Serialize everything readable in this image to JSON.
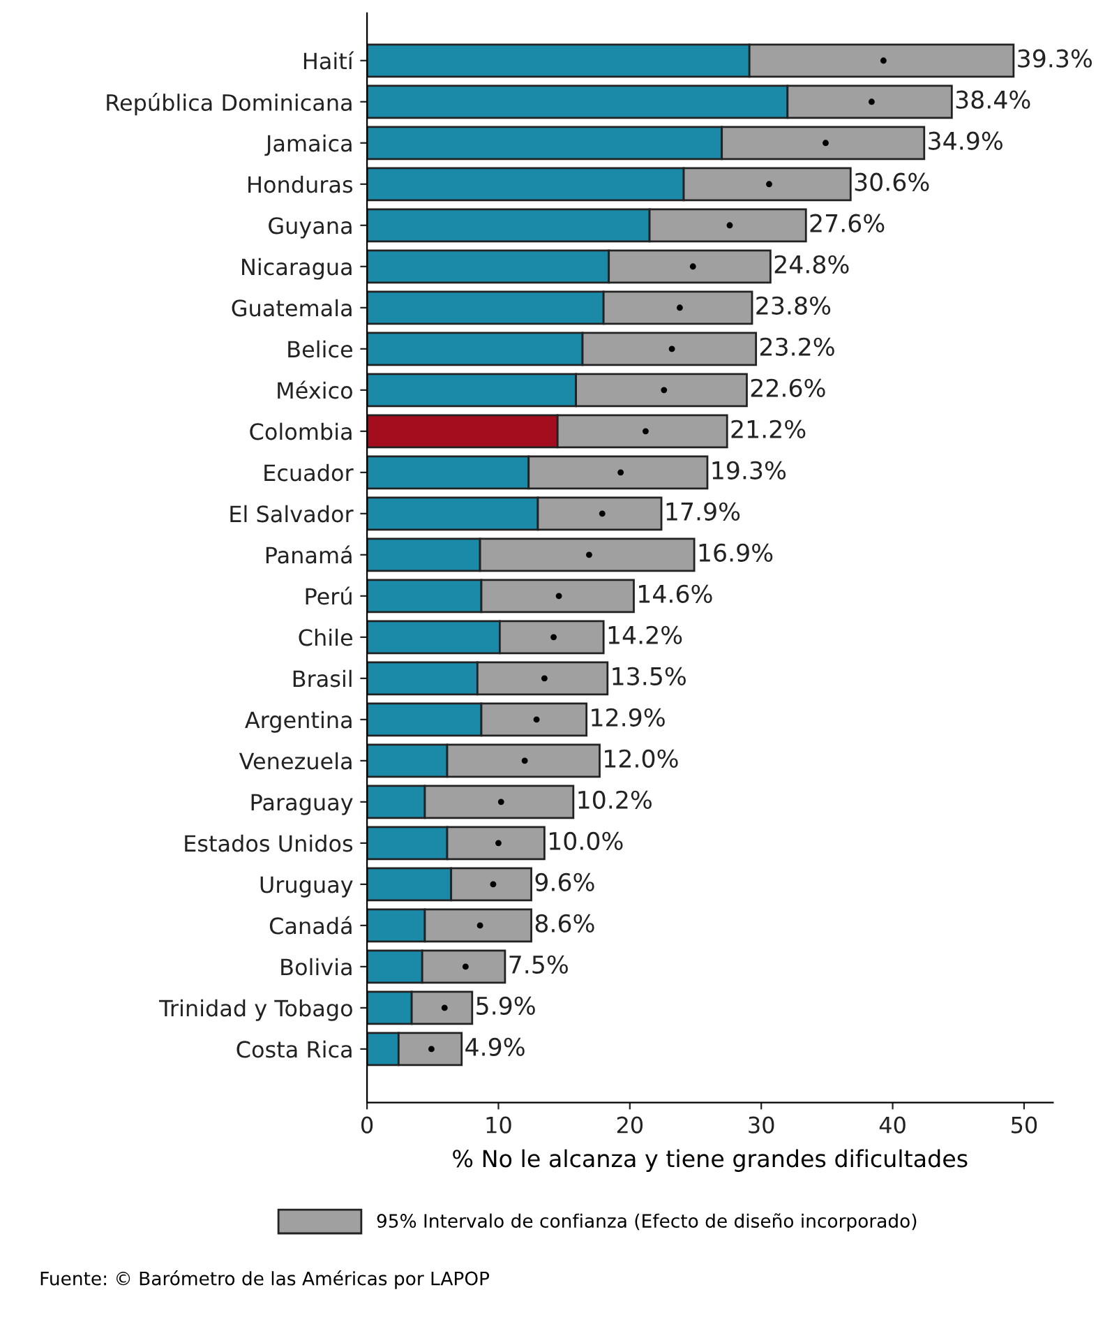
{
  "chart_data": {
    "type": "bar",
    "orientation": "horizontal",
    "stacked": true,
    "categories": [
      "Haití",
      "República Dominicana",
      "Jamaica",
      "Honduras",
      "Guyana",
      "Nicaragua",
      "Guatemala",
      "Belice",
      "México",
      "Colombia",
      "Ecuador",
      "El Salvador",
      "Panamá",
      "Perú",
      "Chile",
      "Brasil",
      "Argentina",
      "Venezuela",
      "Paraguay",
      "Estados Unidos",
      "Uruguay",
      "Canadá",
      "Bolivia",
      "Trinidad y Tobago",
      "Costa Rica"
    ],
    "series": [
      {
        "colors": [
          "#1a8aa8",
          "#1a8aa8",
          "#1a8aa8",
          "#1a8aa8",
          "#1a8aa8",
          "#1a8aa8",
          "#1a8aa8",
          "#1a8aa8",
          "#1a8aa8",
          "#a30d1e",
          "#1a8aa8",
          "#1a8aa8",
          "#1a8aa8",
          "#1a8aa8",
          "#1a8aa8",
          "#1a8aa8",
          "#1a8aa8",
          "#1a8aa8",
          "#1a8aa8",
          "#1a8aa8",
          "#1a8aa8",
          "#1a8aa8",
          "#1a8aa8",
          "#1a8aa8",
          "#1a8aa8"
        ],
        "values": [
          29.1,
          32.0,
          27.0,
          24.1,
          21.5,
          18.4,
          18.0,
          16.4,
          15.9,
          14.5,
          12.3,
          13.0,
          8.6,
          8.7,
          10.1,
          8.4,
          8.7,
          6.1,
          4.4,
          6.1,
          6.4,
          4.4,
          4.2,
          3.4,
          2.4
        ]
      },
      {
        "name": "95% Intervalo de confianza (Efecto de diseño incorporado)",
        "color": "#a0a0a0",
        "values": [
          20.1,
          12.5,
          15.4,
          12.7,
          11.9,
          12.3,
          11.3,
          13.2,
          13.0,
          12.9,
          13.6,
          9.4,
          16.3,
          11.6,
          7.9,
          9.9,
          8.0,
          11.6,
          11.3,
          7.4,
          6.1,
          8.1,
          6.3,
          4.6,
          4.8
        ]
      },
      {
        "type": "scatter",
        "color": "#000000",
        "marker": "circle",
        "values": [
          39.3,
          38.4,
          34.9,
          30.6,
          27.6,
          24.8,
          23.8,
          23.2,
          22.6,
          21.2,
          19.3,
          17.9,
          16.9,
          14.6,
          14.2,
          13.5,
          12.9,
          12.0,
          10.2,
          10.0,
          9.6,
          8.6,
          7.5,
          5.9,
          4.9
        ]
      }
    ],
    "xlim": [
      0,
      52.2
    ],
    "xticks": [
      0,
      10,
      20,
      30,
      40,
      50
    ],
    "xlabel": "% No le alcanza y tiene grandes dificultades",
    "legend": "bottom",
    "grid": false,
    "annotations": [
      {
        "text": "39.3%",
        "x": 49.2,
        "y": "Haití"
      },
      {
        "text": "38.4%",
        "x": 44.5,
        "y": "República Dominicana"
      },
      {
        "text": "34.9%",
        "x": 42.4,
        "y": "Jamaica"
      },
      {
        "text": "30.6%",
        "x": 36.8,
        "y": "Honduras"
      },
      {
        "text": "27.6%",
        "x": 33.4,
        "y": "Guyana"
      },
      {
        "text": "24.8%",
        "x": 30.7,
        "y": "Nicaragua"
      },
      {
        "text": "23.8%",
        "x": 29.3,
        "y": "Guatemala"
      },
      {
        "text": "23.2%",
        "x": 29.6,
        "y": "Belice"
      },
      {
        "text": "22.6%",
        "x": 28.9,
        "y": "México"
      },
      {
        "text": "21.2%",
        "x": 27.4,
        "y": "Colombia"
      },
      {
        "text": "19.3%",
        "x": 25.9,
        "y": "Ecuador"
      },
      {
        "text": "17.9%",
        "x": 22.4,
        "y": "El Salvador"
      },
      {
        "text": "16.9%",
        "x": 24.9,
        "y": "Panamá"
      },
      {
        "text": "14.6%",
        "x": 20.3,
        "y": "Perú"
      },
      {
        "text": "14.2%",
        "x": 18.0,
        "y": "Chile"
      },
      {
        "text": "13.5%",
        "x": 18.3,
        "y": "Brasil"
      },
      {
        "text": "12.9%",
        "x": 16.7,
        "y": "Argentina"
      },
      {
        "text": "12.0%",
        "x": 17.7,
        "y": "Venezuela"
      },
      {
        "text": "10.2%",
        "x": 15.7,
        "y": "Paraguay"
      },
      {
        "text": "10.0%",
        "x": 13.5,
        "y": "Estados Unidos"
      },
      {
        "text": "9.6%",
        "x": 12.5,
        "y": "Uruguay"
      },
      {
        "text": "8.6%",
        "x": 12.5,
        "y": "Canadá"
      },
      {
        "text": "7.5%",
        "x": 10.5,
        "y": "Bolivia"
      },
      {
        "text": "5.9%",
        "x": 8.0,
        "y": "Trinidad y Tobago"
      },
      {
        "text": "4.9%",
        "x": 7.2,
        "y": "Costa Rica"
      },
      "Fuente: © Barómetro de las Américas por LAPOP"
    ]
  }
}
